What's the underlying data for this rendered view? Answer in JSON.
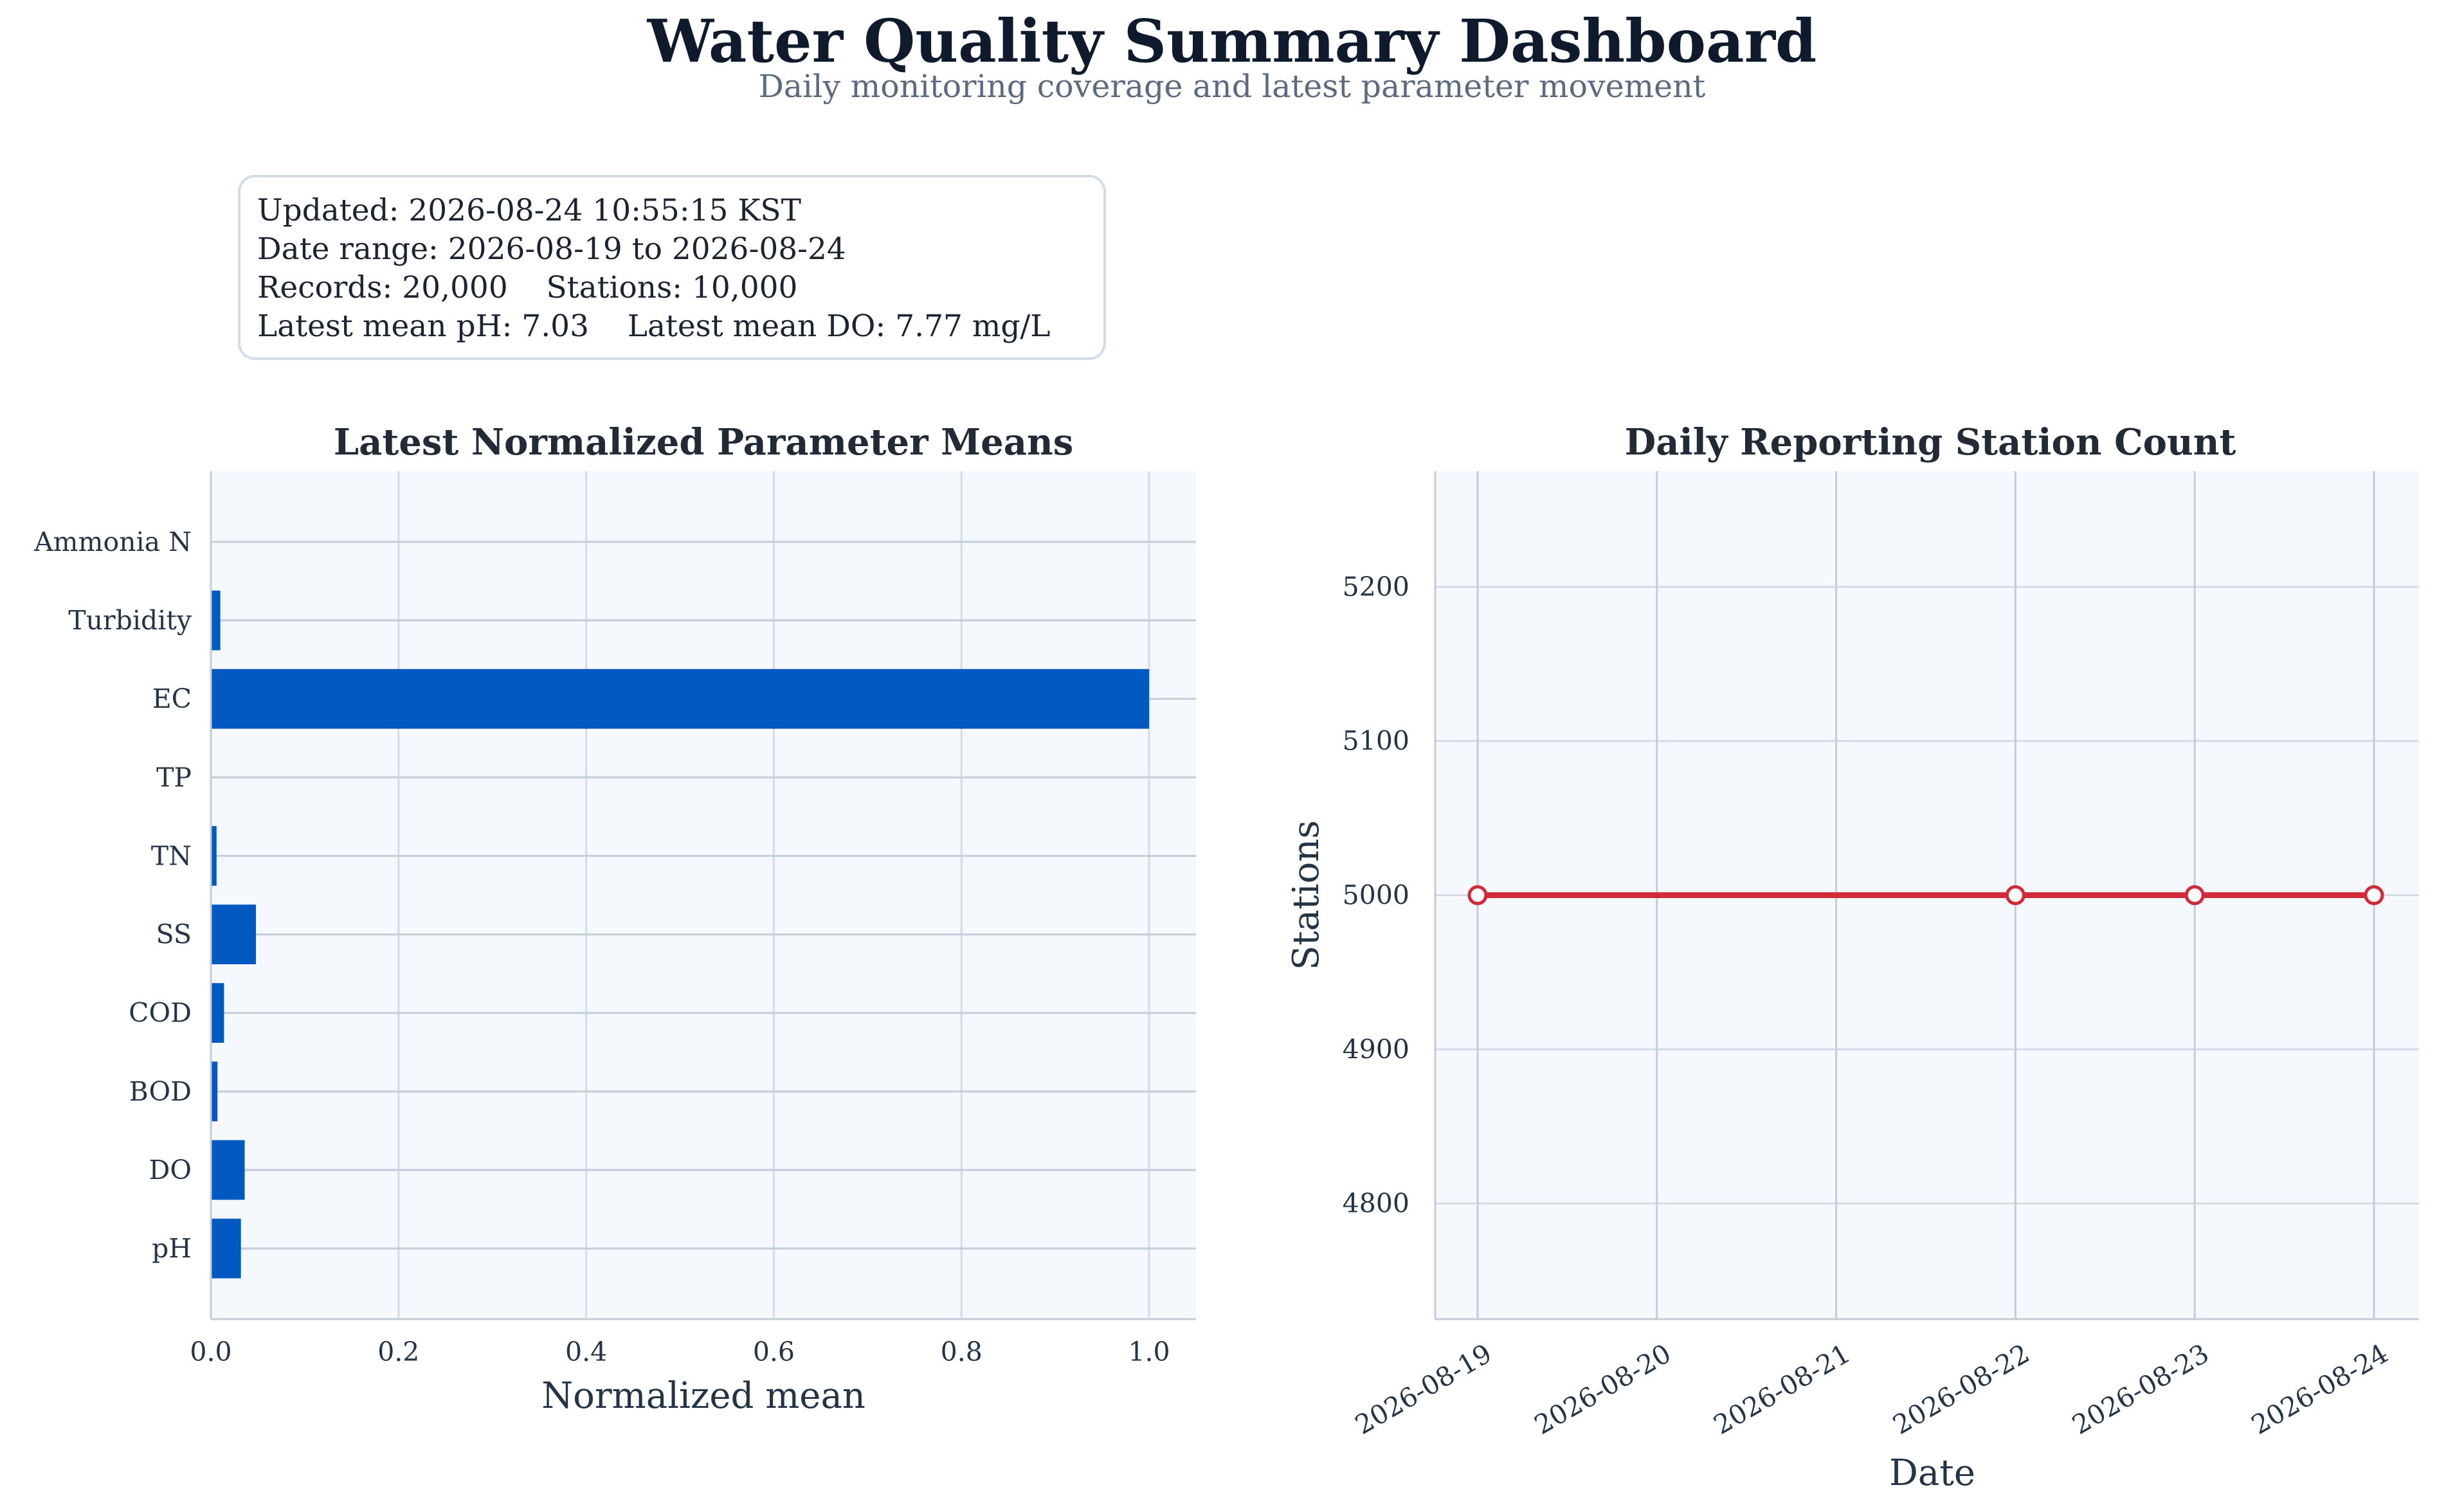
{
  "header": {
    "title": "Water Quality Summary Dashboard",
    "subtitle": "Daily monitoring coverage and latest parameter movement"
  },
  "summary": {
    "lines": [
      "Updated: 2026-08-24 10:55:15 KST",
      "Date range: 2026-08-19 to 2026-08-24",
      "Records: 20,000    Stations: 10,000",
      "Latest mean pH: 7.03    Latest mean DO: 7.77 mg/L"
    ]
  },
  "colors": {
    "bar": "#0059c1",
    "line": "#d12b3a",
    "plot_bg": "#f5f9fe",
    "grid": "#d4dbe6"
  },
  "chart_data": [
    {
      "type": "bar",
      "orientation": "horizontal",
      "title": "Latest Normalized Parameter Means",
      "xlabel": "Normalized mean",
      "ylabel": "",
      "xlim": [
        0,
        1.05
      ],
      "xticks": [
        "0.0",
        "0.2",
        "0.4",
        "0.6",
        "0.8",
        "1.0"
      ],
      "categories": [
        "pH",
        "DO",
        "BOD",
        "COD",
        "SS",
        "TN",
        "TP",
        "EC",
        "Turbidity",
        "Ammonia N"
      ],
      "values": [
        0.032,
        0.036,
        0.007,
        0.014,
        0.048,
        0.006,
        0.0,
        1.0,
        0.01,
        0.0
      ],
      "grid": true
    },
    {
      "type": "line",
      "title": "Daily Reporting Station Count",
      "xlabel": "Date",
      "ylabel": "Stations",
      "x": [
        "2026-08-19",
        "2026-08-22",
        "2026-08-23",
        "2026-08-24"
      ],
      "y": [
        5000,
        5000,
        5000,
        5000
      ],
      "xticks": [
        "2026-08-19",
        "2026-08-20",
        "2026-08-21",
        "2026-08-22",
        "2026-08-23",
        "2026-08-24"
      ],
      "ylim": [
        4725,
        5275
      ],
      "yticks": [
        "4800",
        "4900",
        "5000",
        "5100",
        "5200"
      ],
      "markers": "hollow-circle",
      "grid": true
    }
  ]
}
